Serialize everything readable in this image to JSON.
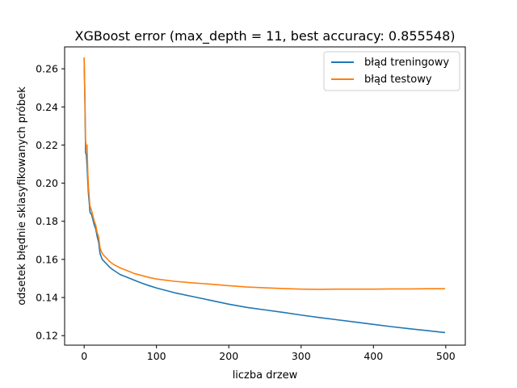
{
  "chart_data": {
    "type": "line",
    "title": "XGBoost error (max_depth = 11, best accuracy: 0.855548)",
    "xlabel": "liczba drzew",
    "ylabel": "odsetek błędnie sklasyfikowanych próbek",
    "xlim": [
      -27,
      527
    ],
    "ylim": [
      0.115,
      0.2715
    ],
    "xticks": [
      0,
      100,
      200,
      300,
      400,
      500
    ],
    "yticks": [
      0.12,
      0.14,
      0.16,
      0.18,
      0.2,
      0.22,
      0.24,
      0.26
    ],
    "grid": false,
    "legend_position": "top-right",
    "colors": {
      "train": "#1f77b4",
      "test": "#ff7f0e"
    },
    "series": [
      {
        "name": "błąd treningowy",
        "x": [
          0,
          1,
          2,
          3,
          4,
          5,
          6,
          7,
          8,
          9,
          10,
          12,
          14,
          16,
          18,
          20,
          22,
          25,
          30,
          35,
          40,
          50,
          60,
          70,
          80,
          90,
          100,
          125,
          150,
          175,
          200,
          225,
          250,
          275,
          300,
          325,
          350,
          375,
          400,
          425,
          450,
          475,
          499
        ],
        "y": [
          0.265,
          0.244,
          0.216,
          0.215,
          0.209,
          0.201,
          0.194,
          0.19,
          0.185,
          0.184,
          0.184,
          0.181,
          0.178,
          0.176,
          0.172,
          0.169,
          0.163,
          0.16,
          0.158,
          0.156,
          0.1545,
          0.152,
          0.1505,
          0.149,
          0.1475,
          0.1462,
          0.145,
          0.1425,
          0.1405,
          0.1385,
          0.1365,
          0.1348,
          0.1335,
          0.1322,
          0.1308,
          0.1295,
          0.1283,
          0.1271,
          0.1259,
          0.1247,
          0.1236,
          0.1226,
          0.1216
        ]
      },
      {
        "name": "błąd testowy",
        "x": [
          0,
          1,
          2,
          3,
          4,
          5,
          6,
          7,
          8,
          9,
          10,
          12,
          14,
          16,
          18,
          20,
          22,
          25,
          30,
          35,
          40,
          50,
          60,
          70,
          80,
          90,
          100,
          125,
          150,
          175,
          200,
          225,
          250,
          275,
          300,
          325,
          350,
          375,
          400,
          425,
          450,
          475,
          499
        ],
        "y": [
          0.266,
          0.246,
          0.222,
          0.218,
          0.22,
          0.206,
          0.198,
          0.193,
          0.188,
          0.187,
          0.186,
          0.183,
          0.18,
          0.178,
          0.174,
          0.172,
          0.166,
          0.163,
          0.161,
          0.159,
          0.1575,
          0.1555,
          0.154,
          0.1525,
          0.1515,
          0.1505,
          0.1497,
          0.1485,
          0.1477,
          0.147,
          0.1462,
          0.1455,
          0.1451,
          0.1447,
          0.1444,
          0.1443,
          0.1444,
          0.1444,
          0.1444,
          0.1445,
          0.1445,
          0.1446,
          0.1446
        ]
      }
    ]
  }
}
